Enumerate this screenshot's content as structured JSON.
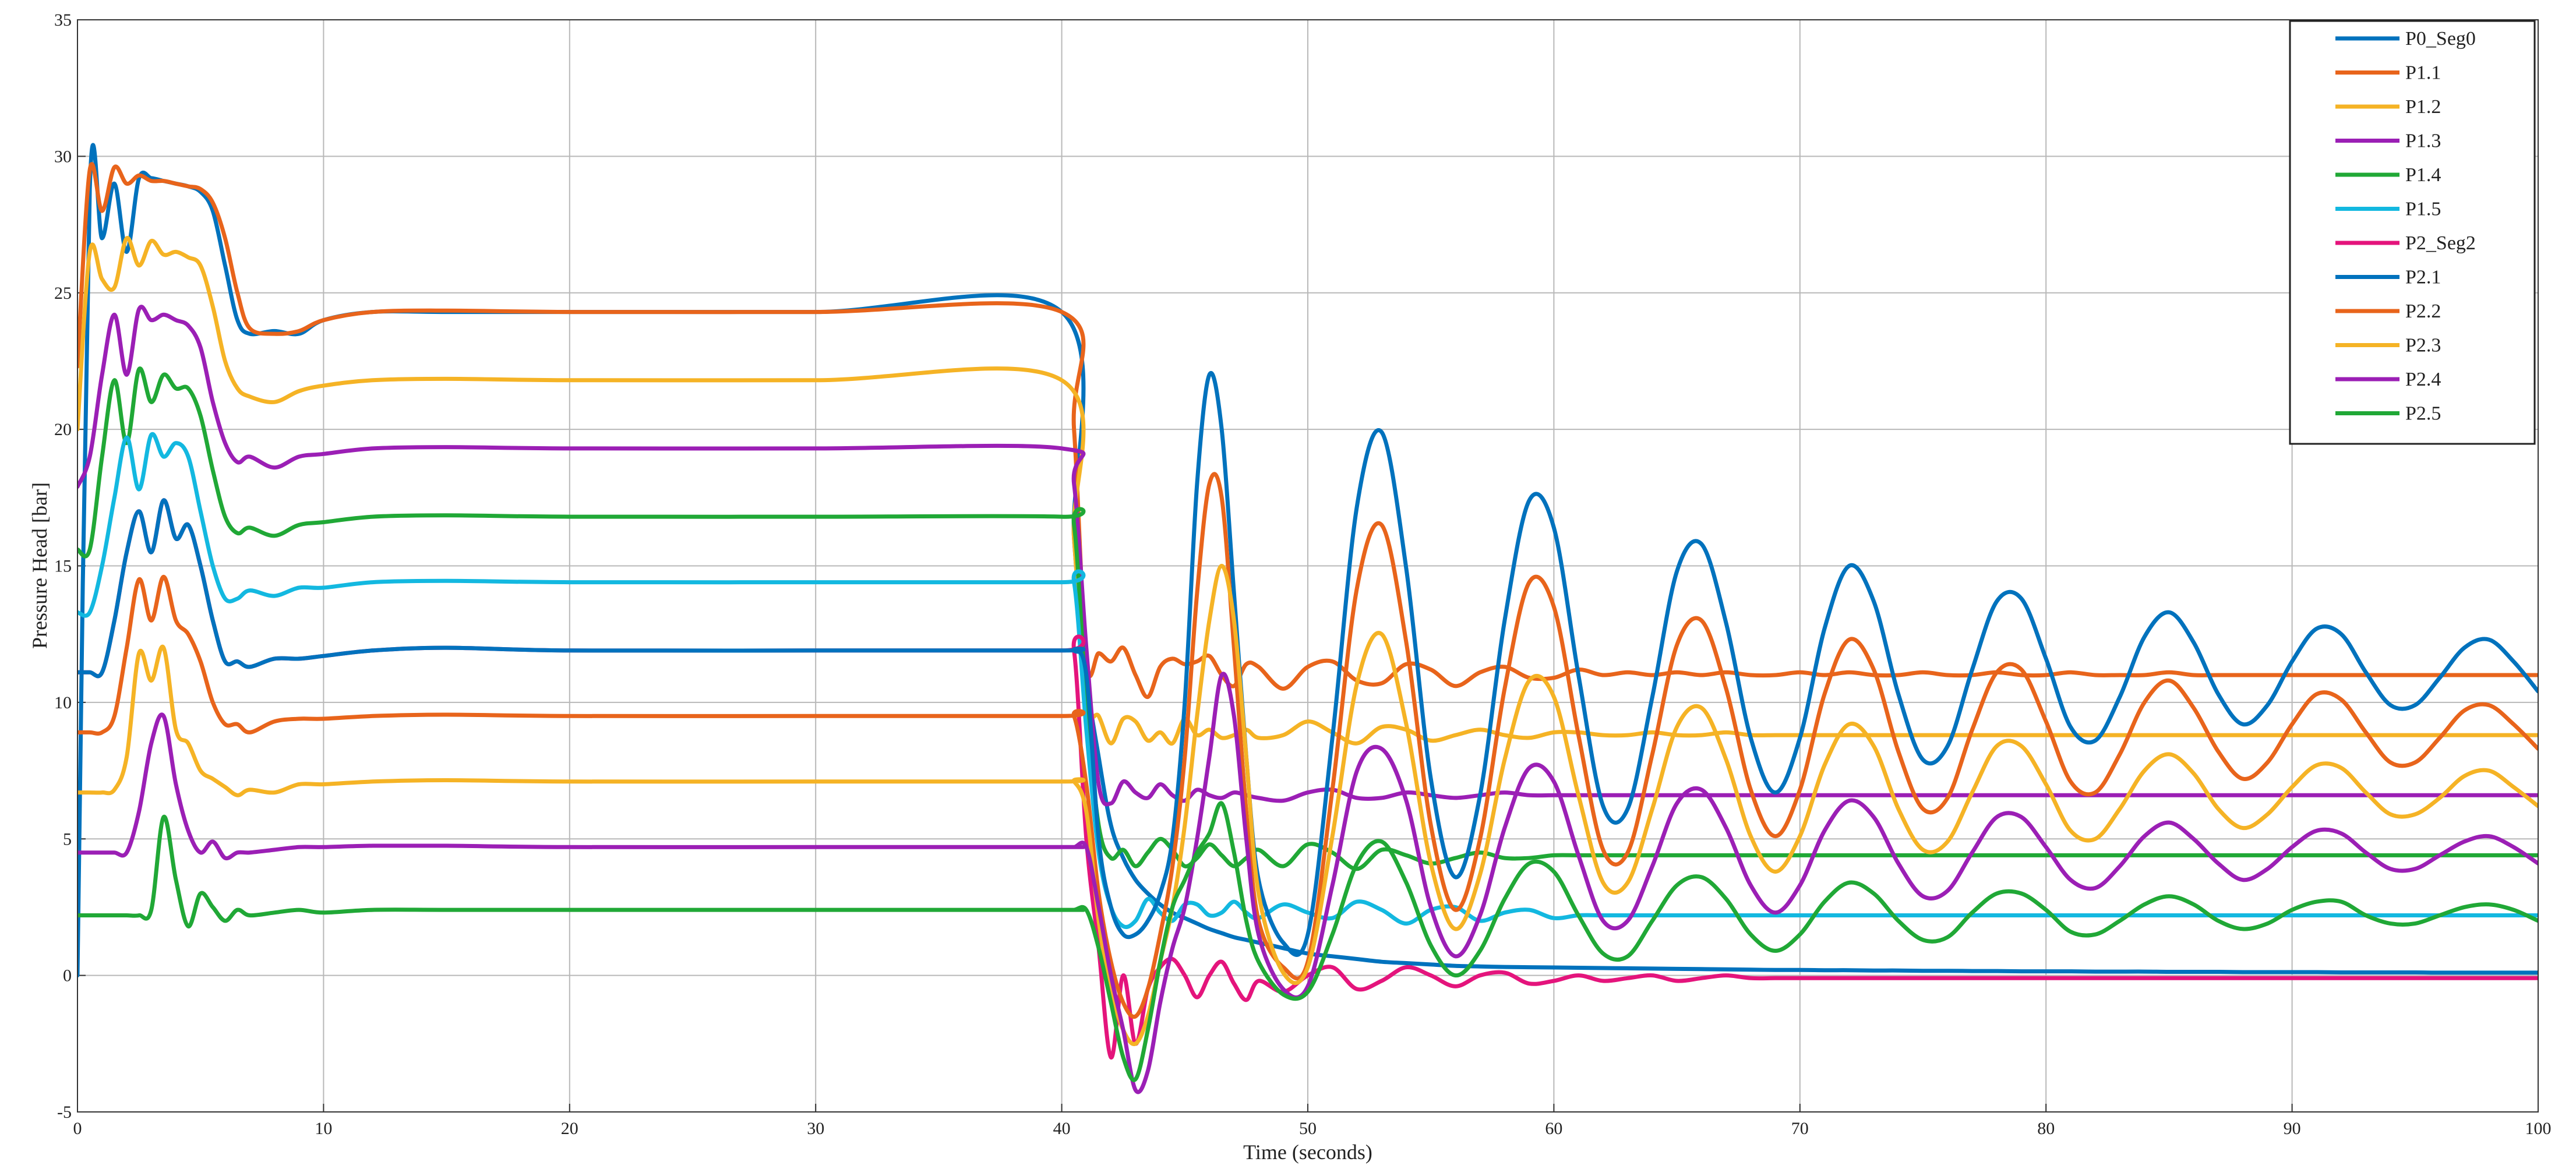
{
  "chart_data": {
    "type": "line",
    "x_label": "Time (seconds)",
    "y_label": "Pressure Head [bar]",
    "xlim": [
      0,
      100
    ],
    "xticks": [
      0,
      10,
      20,
      30,
      40,
      50,
      60,
      70,
      80,
      90,
      100
    ],
    "ylim": [
      -5,
      35
    ],
    "yticks": [
      -5,
      0,
      5,
      10,
      15,
      20,
      25,
      30,
      35
    ],
    "grid": true,
    "legend": "upper right",
    "x": [
      0,
      0.5,
      1,
      1.5,
      2,
      2.5,
      3,
      3.5,
      4,
      4.5,
      5,
      5.5,
      6,
      6.5,
      7,
      8,
      9,
      10,
      12,
      15,
      20,
      30,
      40,
      40.5,
      41,
      41.5,
      42,
      42.5,
      43,
      43.5,
      44,
      44.5,
      45,
      45.5,
      46,
      46.5,
      47,
      47.5,
      48,
      49,
      50,
      51,
      52,
      53,
      54,
      55,
      56,
      57,
      58,
      59,
      60,
      61,
      62,
      63,
      64,
      65,
      66,
      67,
      68,
      69,
      70,
      71,
      72,
      73,
      74,
      75,
      76,
      77,
      78,
      79,
      80,
      81,
      82,
      83,
      84,
      85,
      86,
      87,
      88,
      89,
      90,
      91,
      92,
      93,
      94,
      95,
      96,
      97,
      98,
      99,
      100
    ],
    "series": [
      {
        "name": "P0_Seg0",
        "color": "#0072bd",
        "values": [
          0,
          28.8,
          27,
          29,
          26.5,
          29.2,
          29.2,
          29.1,
          29,
          28.9,
          28.7,
          28,
          26,
          24,
          23.5,
          23.6,
          23.5,
          24,
          24.3,
          24.3,
          24.3,
          24.3,
          24.3,
          16,
          11,
          8,
          5.5,
          4.3,
          3.5,
          3,
          2.6,
          2.3,
          2.1,
          1.9,
          1.7,
          1.55,
          1.4,
          1.3,
          1.2,
          1,
          0.8,
          0.7,
          0.6,
          0.5,
          0.45,
          0.4,
          0.35,
          0.33,
          0.31,
          0.3,
          0.29,
          0.28,
          0.27,
          0.26,
          0.25,
          0.24,
          0.23,
          0.22,
          0.21,
          0.2,
          0.2,
          0.19,
          0.19,
          0.18,
          0.18,
          0.17,
          0.17,
          0.16,
          0.16,
          0.15,
          0.15,
          0.15,
          0.14,
          0.14,
          0.14,
          0.13,
          0.13,
          0.13,
          0.12,
          0.12,
          0.12,
          0.12,
          0.11,
          0.11,
          0.11,
          0.11,
          0.1,
          0.1,
          0.1,
          0.1,
          0.1
        ]
      },
      {
        "name": "P1.1",
        "color": "#e8641b",
        "values": [
          22.3,
          29.5,
          28,
          29.6,
          29,
          29.3,
          29.1,
          29.1,
          29,
          28.9,
          28.8,
          28.3,
          27,
          25,
          23.7,
          23.5,
          23.6,
          24.0,
          24.3,
          24.35,
          24.3,
          24.3,
          24.3,
          20,
          11.5,
          11.8,
          11.5,
          12.0,
          11.0,
          10.2,
          11.3,
          11.6,
          11.4,
          11.5,
          11.7,
          11.0,
          10.6,
          11.4,
          11.3,
          10.5,
          11.3,
          11.5,
          10.8,
          10.7,
          11.4,
          11.2,
          10.6,
          11.1,
          11.3,
          10.9,
          10.9,
          11.2,
          11.0,
          11.1,
          11.0,
          11.1,
          11.0,
          11.1,
          11.0,
          11.0,
          11.1,
          11.0,
          11.1,
          11.0,
          11.0,
          11.1,
          11.0,
          11.0,
          11.1,
          11.0,
          11.0,
          11.1,
          11.0,
          11.0,
          11.0,
          11.1,
          11.0,
          11.0,
          11.0,
          11.0,
          11.0,
          11.0,
          11.0,
          11.0,
          11.0,
          11.0,
          11.0,
          11.0,
          11.0,
          11.0,
          11.0
        ]
      },
      {
        "name": "P1.2",
        "color": "#f5b325",
        "values": [
          20,
          26.5,
          25.5,
          25.2,
          27,
          26,
          26.9,
          26.4,
          26.5,
          26.3,
          26,
          24.5,
          22.5,
          21.5,
          21.2,
          21,
          21.4,
          21.6,
          21.8,
          21.85,
          21.8,
          21.8,
          21.8,
          16,
          10,
          9.5,
          8.5,
          9.4,
          9.3,
          8.6,
          8.9,
          8.5,
          9.4,
          8.8,
          9.0,
          8.7,
          8.8,
          9.0,
          8.7,
          8.8,
          9.3,
          8.9,
          8.5,
          9.1,
          9.0,
          8.6,
          8.8,
          9.0,
          8.8,
          8.7,
          8.9,
          8.9,
          8.8,
          8.8,
          8.9,
          8.8,
          8.8,
          8.9,
          8.8,
          8.8,
          8.8,
          8.8,
          8.8,
          8.8,
          8.8,
          8.8,
          8.8,
          8.8,
          8.8,
          8.8,
          8.8,
          8.8,
          8.8,
          8.8,
          8.8,
          8.8,
          8.8,
          8.8,
          8.8,
          8.8,
          8.8,
          8.8,
          8.8,
          8.8,
          8.8,
          8.8,
          8.8,
          8.8,
          8.8,
          8.8,
          8.8
        ]
      },
      {
        "name": "P1.3",
        "color": "#9b1fb5",
        "values": [
          17.9,
          19,
          22,
          24.2,
          22,
          24.4,
          24,
          24.2,
          24,
          23.8,
          23,
          21,
          19.5,
          18.8,
          19,
          18.6,
          19.0,
          19.1,
          19.3,
          19.35,
          19.3,
          19.3,
          19.3,
          18,
          12,
          7,
          6.3,
          7.1,
          6.7,
          6.5,
          7.0,
          6.6,
          6.4,
          6.8,
          6.6,
          6.5,
          6.7,
          6.6,
          6.5,
          6.4,
          6.7,
          6.8,
          6.5,
          6.5,
          6.7,
          6.6,
          6.5,
          6.6,
          6.7,
          6.6,
          6.6,
          6.6,
          6.6,
          6.6,
          6.6,
          6.6,
          6.6,
          6.6,
          6.6,
          6.6,
          6.6,
          6.6,
          6.6,
          6.6,
          6.6,
          6.6,
          6.6,
          6.6,
          6.6,
          6.6,
          6.6,
          6.6,
          6.6,
          6.6,
          6.6,
          6.6,
          6.6,
          6.6,
          6.6,
          6.6,
          6.6,
          6.6,
          6.6,
          6.6,
          6.6,
          6.6,
          6.6,
          6.6,
          6.6,
          6.6,
          6.6
        ]
      },
      {
        "name": "P1.4",
        "color": "#20a836",
        "values": [
          15.6,
          15.6,
          19,
          21.8,
          19.5,
          22.2,
          21,
          22,
          21.5,
          21.5,
          20.5,
          18.5,
          16.8,
          16.2,
          16.4,
          16.1,
          16.5,
          16.6,
          16.8,
          16.85,
          16.8,
          16.8,
          16.8,
          16.5,
          10,
          5.5,
          4.3,
          4.6,
          4.0,
          4.5,
          5.0,
          4.6,
          4.0,
          4.3,
          4.8,
          4.4,
          4.0,
          4.3,
          4.6,
          4.0,
          4.8,
          4.5,
          3.9,
          4.6,
          4.4,
          4.1,
          4.3,
          4.5,
          4.3,
          4.3,
          4.4,
          4.4,
          4.4,
          4.4,
          4.4,
          4.4,
          4.4,
          4.4,
          4.4,
          4.4,
          4.4,
          4.4,
          4.4,
          4.4,
          4.4,
          4.4,
          4.4,
          4.4,
          4.4,
          4.4,
          4.4,
          4.4,
          4.4,
          4.4,
          4.4,
          4.4,
          4.4,
          4.4,
          4.4,
          4.4,
          4.4,
          4.4,
          4.4,
          4.4,
          4.4,
          4.4,
          4.4,
          4.4,
          4.4,
          4.4,
          4.4
        ]
      },
      {
        "name": "P1.5",
        "color": "#13b8e0",
        "values": [
          13.3,
          13.3,
          15,
          17.5,
          19.7,
          17.8,
          19.8,
          19,
          19.5,
          19,
          17,
          15,
          13.8,
          13.8,
          14.1,
          13.9,
          14.2,
          14.2,
          14.4,
          14.45,
          14.4,
          14.4,
          14.4,
          14.4,
          9,
          4.5,
          2.5,
          1.8,
          2.0,
          2.8,
          2.3,
          2.0,
          2.6,
          2.6,
          2.2,
          2.3,
          2.7,
          2.3,
          2.1,
          2.6,
          2.3,
          2.1,
          2.7,
          2.4,
          1.9,
          2.4,
          2.5,
          2.0,
          2.3,
          2.4,
          2.1,
          2.2,
          2.2,
          2.2,
          2.2,
          2.2,
          2.2,
          2.2,
          2.2,
          2.2,
          2.2,
          2.2,
          2.2,
          2.2,
          2.2,
          2.2,
          2.2,
          2.2,
          2.2,
          2.2,
          2.2,
          2.2,
          2.2,
          2.2,
          2.2,
          2.2,
          2.2,
          2.2,
          2.2,
          2.2,
          2.2,
          2.2,
          2.2,
          2.2,
          2.2,
          2.2,
          2.2,
          2.2,
          2.2,
          2.2,
          2.2
        ]
      },
      {
        "name": "P2_Seg2",
        "color": "#e4147c",
        "values": [
          11.1,
          11.1,
          11.1,
          13,
          15.5,
          17,
          15.5,
          17.4,
          16,
          16.5,
          15,
          13,
          11.5,
          11.5,
          11.3,
          11.6,
          11.6,
          11.7,
          11.9,
          12.0,
          11.9,
          11.9,
          11.9,
          11.9,
          5,
          1,
          -3,
          0,
          -2.5,
          -0.5,
          0.3,
          0.6,
          0.0,
          -0.8,
          0.0,
          0.5,
          -0.3,
          -0.9,
          -0.2,
          -0.6,
          0.0,
          0.3,
          -0.5,
          -0.2,
          0.3,
          0.0,
          -0.4,
          0.0,
          0.1,
          -0.3,
          -0.2,
          0.0,
          -0.2,
          -0.1,
          0.0,
          -0.2,
          -0.1,
          0.0,
          -0.1,
          -0.1,
          -0.1,
          -0.1,
          -0.1,
          -0.1,
          -0.1,
          -0.1,
          -0.1,
          -0.1,
          -0.1,
          -0.1,
          -0.1,
          -0.1,
          -0.1,
          -0.1,
          -0.1,
          -0.1,
          -0.1,
          -0.1,
          -0.1,
          -0.1,
          -0.1,
          -0.1,
          -0.1,
          -0.1,
          -0.1,
          -0.1,
          -0.1,
          -0.1,
          -0.1,
          -0.1,
          -0.1
        ]
      },
      {
        "name": "P2.1",
        "color": "#0072bd",
        "values": [
          11.1,
          11.1,
          11.1,
          13,
          15.5,
          17,
          15.5,
          17.4,
          16,
          16.5,
          15,
          13,
          11.5,
          11.5,
          11.3,
          11.6,
          11.6,
          11.7,
          11.9,
          12.0,
          11.9,
          11.9,
          11.9,
          11.9,
          11,
          5,
          2.5,
          1.5,
          1.5,
          2.0,
          3.0,
          5.0,
          10,
          18,
          22,
          20,
          14,
          8,
          3.5,
          1.2,
          1.5,
          8.7,
          17.2,
          19.9,
          14.9,
          7.2,
          3.6,
          6.6,
          13.0,
          17.4,
          16.4,
          11.0,
          6.2,
          6.1,
          10.2,
          14.8,
          15.8,
          12.9,
          8.7,
          6.7,
          8.7,
          12.7,
          15.0,
          13.7,
          10.3,
          7.9,
          8.4,
          11.2,
          13.7,
          13.8,
          11.6,
          9.1,
          8.6,
          10.2,
          12.4,
          13.3,
          12.2,
          10.3,
          9.2,
          9.9,
          11.5,
          12.7,
          12.5,
          11.1,
          9.9,
          9.9,
          10.9,
          12.0,
          12.3,
          11.5,
          10.4
        ]
      },
      {
        "name": "P2.2",
        "color": "#e8641b",
        "values": [
          8.9,
          8.9,
          8.9,
          9.5,
          12,
          14.5,
          13,
          14.6,
          13,
          12.5,
          11.5,
          10,
          9.2,
          9.2,
          8.9,
          9.3,
          9.4,
          9.4,
          9.5,
          9.55,
          9.5,
          9.5,
          9.5,
          9.5,
          7,
          3,
          0.5,
          -1,
          -1.5,
          -0.5,
          1.5,
          4,
          8,
          14,
          18,
          17.5,
          12,
          6,
          2,
          0.3,
          0.5,
          6.8,
          14.2,
          16.5,
          12.2,
          5.5,
          2.4,
          5.0,
          10.5,
          14.4,
          13.5,
          8.8,
          4.6,
          4.5,
          8.1,
          12.1,
          13.0,
          10.5,
          6.8,
          5.1,
          6.8,
          10.3,
          12.3,
          11.2,
          8.2,
          6.1,
          6.5,
          9.0,
          11.1,
          11.2,
          9.3,
          7.1,
          6.7,
          8.1,
          10.0,
          10.8,
          9.8,
          8.2,
          7.2,
          7.8,
          9.2,
          10.3,
          10.1,
          8.9,
          7.8,
          7.8,
          8.7,
          9.7,
          9.9,
          9.2,
          8.3
        ]
      },
      {
        "name": "P2.3",
        "color": "#f5b325",
        "values": [
          6.7,
          6.7,
          6.7,
          6.8,
          8,
          11.8,
          10.8,
          12,
          9,
          8.5,
          7.5,
          7.2,
          6.9,
          6.6,
          6.8,
          6.7,
          7.0,
          7.0,
          7.1,
          7.15,
          7.1,
          7.1,
          7.1,
          7.1,
          6,
          2,
          -0.5,
          -2,
          -2.5,
          -1.5,
          0.5,
          2.5,
          5.5,
          9.5,
          13,
          15,
          13,
          8,
          3,
          0.1,
          0.3,
          5.1,
          10.7,
          12.5,
          9.2,
          4.1,
          1.7,
          3.7,
          7.9,
          10.8,
          10.2,
          6.6,
          3.4,
          3.4,
          6.1,
          9.1,
          9.8,
          7.9,
          5.1,
          3.8,
          5.1,
          7.7,
          9.2,
          8.4,
          6.1,
          4.6,
          4.9,
          6.7,
          8.4,
          8.4,
          7.0,
          5.3,
          5.0,
          6.1,
          7.5,
          8.1,
          7.4,
          6.1,
          5.4,
          5.9,
          6.9,
          7.7,
          7.6,
          6.7,
          5.9,
          5.9,
          6.5,
          7.3,
          7.5,
          6.9,
          6.2
        ]
      },
      {
        "name": "P2.4",
        "color": "#9b1fb5",
        "values": [
          4.5,
          4.5,
          4.5,
          4.5,
          4.5,
          6,
          8.5,
          9.5,
          7,
          5.3,
          4.5,
          4.9,
          4.3,
          4.5,
          4.5,
          4.6,
          4.7,
          4.7,
          4.75,
          4.75,
          4.7,
          4.7,
          4.7,
          4.7,
          4.7,
          2.5,
          0,
          -2,
          -4.2,
          -3.5,
          -1,
          1,
          2.5,
          5,
          8,
          11,
          9.5,
          5,
          1.5,
          -0.5,
          -0.4,
          3.3,
          7.5,
          8.3,
          6.4,
          2.5,
          0.7,
          2.2,
          5.4,
          7.6,
          7.1,
          4.4,
          2.0,
          2.0,
          4.0,
          6.3,
          6.8,
          5.4,
          3.3,
          2.3,
          3.3,
          5.3,
          6.4,
          5.8,
          4.1,
          2.9,
          3.1,
          4.5,
          5.8,
          5.8,
          4.7,
          3.5,
          3.2,
          4.0,
          5.1,
          5.6,
          5.0,
          4.1,
          3.5,
          3.9,
          4.7,
          5.3,
          5.2,
          4.5,
          3.9,
          3.9,
          4.4,
          4.9,
          5.1,
          4.7,
          4.1
        ]
      },
      {
        "name": "P2.5",
        "color": "#20a836",
        "values": [
          2.2,
          2.2,
          2.2,
          2.2,
          2.2,
          2.2,
          2.4,
          5.8,
          3.5,
          1.8,
          3,
          2.5,
          2.0,
          2.4,
          2.2,
          2.3,
          2.4,
          2.3,
          2.4,
          2.4,
          2.4,
          2.4,
          2.4,
          2.4,
          2.4,
          1,
          -1,
          -3,
          -3.8,
          -2,
          0.5,
          2.5,
          3.5,
          4.5,
          5.2,
          6.3,
          4.5,
          2,
          0.5,
          -0.7,
          -0.6,
          1.5,
          4.1,
          4.9,
          3.4,
          1.1,
          0.0,
          0.9,
          2.8,
          4.1,
          3.8,
          2.2,
          0.8,
          0.7,
          2.0,
          3.3,
          3.6,
          2.8,
          1.5,
          0.9,
          1.5,
          2.7,
          3.4,
          3.0,
          2.0,
          1.3,
          1.4,
          2.3,
          3.0,
          3.0,
          2.4,
          1.6,
          1.5,
          2.0,
          2.6,
          2.9,
          2.6,
          2.0,
          1.7,
          1.9,
          2.4,
          2.7,
          2.7,
          2.2,
          1.9,
          1.9,
          2.2,
          2.5,
          2.6,
          2.4,
          2.0
        ]
      }
    ]
  }
}
